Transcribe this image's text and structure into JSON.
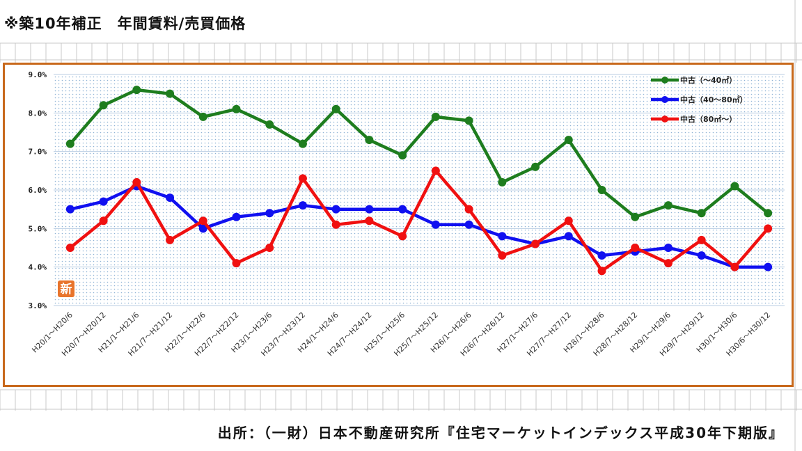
{
  "header": {
    "title": "※築10年補正　年間賃料/売買価格"
  },
  "footer": {
    "source": "出所：（一財）日本不動産研究所『住宅マーケットインデックス平成30年下期版』"
  },
  "badge": {
    "text": "新",
    "color": "#e8742c"
  },
  "chart_data": {
    "type": "line",
    "title": "",
    "xlabel": "",
    "ylabel": "",
    "ylim": [
      3.0,
      9.0
    ],
    "y_ticks": [
      "3.0%",
      "4.0%",
      "5.0%",
      "6.0%",
      "7.0%",
      "8.0%",
      "9.0%"
    ],
    "y_tick_values": [
      3.0,
      4.0,
      5.0,
      6.0,
      7.0,
      8.0,
      9.0
    ],
    "grid": true,
    "legend_position": "top-right",
    "categories": [
      "H20/1～H20/6",
      "H20/7～H20/12",
      "H21/1～H21/6",
      "H21/7～H21/12",
      "H22/1～H22/6",
      "H22/7～H22/12",
      "H23/1～H23/6",
      "H23/7～H23/12",
      "H24/1～H24/6",
      "H24/7～H24/12",
      "H25/1～H25/6",
      "H25/7～H25/12",
      "H26/1～H26/6",
      "H26/7～H26/12",
      "H27/1～H27/6",
      "H27/7～H27/12",
      "H28/1～H28/6",
      "H28/7～H28/12",
      "H29/1～H29/6",
      "H29/7～H29/12",
      "H30/1～H30/6",
      "H30/6～H30/12"
    ],
    "series": [
      {
        "name": "中古（～40㎡）",
        "color": "#1e7d1e",
        "values": [
          7.2,
          8.2,
          8.6,
          8.5,
          7.9,
          8.1,
          7.7,
          7.2,
          8.1,
          7.3,
          6.9,
          7.9,
          7.8,
          6.2,
          6.6,
          7.3,
          6.0,
          5.3,
          5.6,
          5.4,
          6.1,
          5.4
        ]
      },
      {
        "name": "中古（40～80㎡）",
        "color": "#1010f0",
        "values": [
          5.5,
          5.7,
          6.1,
          5.8,
          5.0,
          5.3,
          5.4,
          5.6,
          5.5,
          5.5,
          5.5,
          5.1,
          5.1,
          4.8,
          4.6,
          4.8,
          4.3,
          4.4,
          4.5,
          4.3,
          4.0,
          4.0
        ]
      },
      {
        "name": "中古（80㎡～）",
        "color": "#f01010",
        "values": [
          4.5,
          5.2,
          6.2,
          4.7,
          5.2,
          4.1,
          4.5,
          6.3,
          5.1,
          5.2,
          4.8,
          6.5,
          5.5,
          4.3,
          4.6,
          5.2,
          3.9,
          4.5,
          4.1,
          4.7,
          4.0,
          5.0
        ]
      }
    ]
  }
}
